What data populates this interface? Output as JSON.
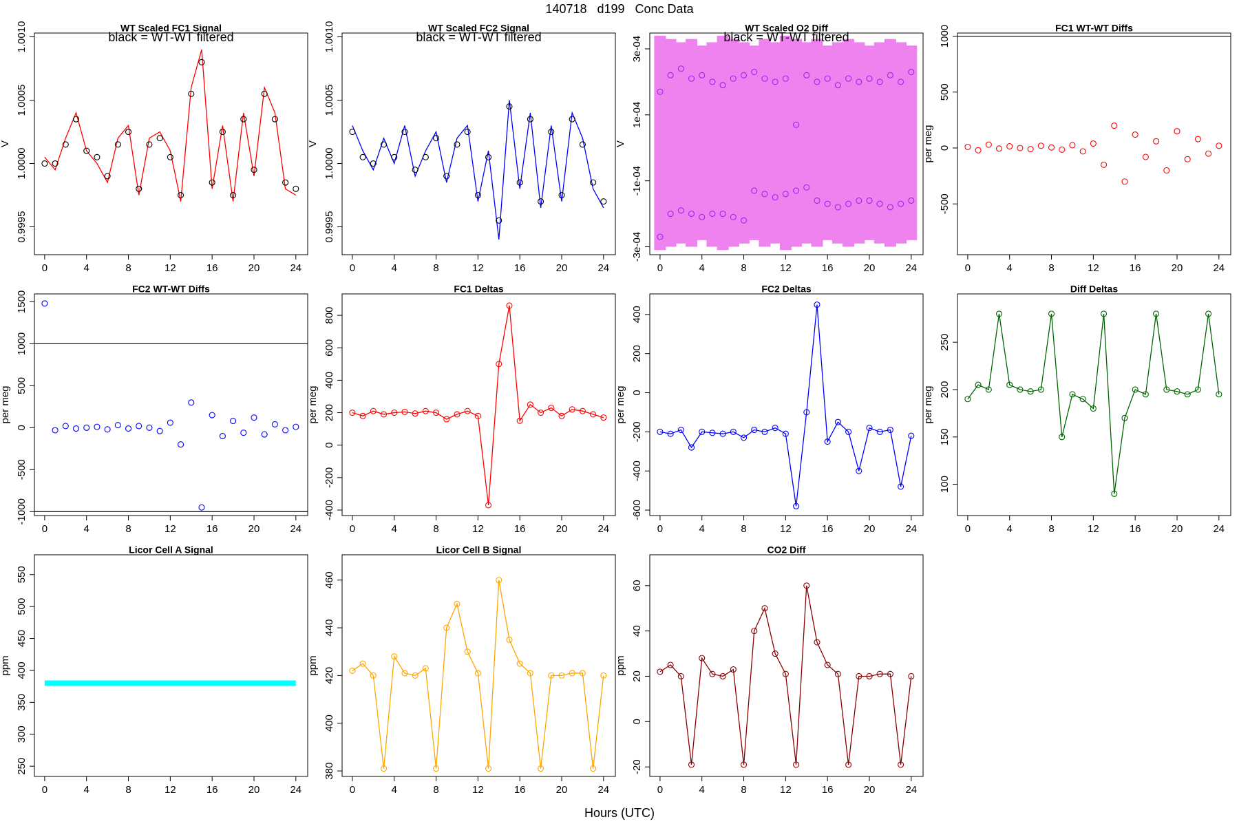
{
  "title": "140718   d199   Conc Data",
  "x_label": "Hours (UTC)",
  "chart_data": [
    {
      "type": "line",
      "title": "WT Scaled FC1 Signal",
      "subtitle": "black = WT-WT filtered",
      "y_label": "V",
      "x": [
        0,
        1,
        2,
        3,
        4,
        5,
        6,
        7,
        8,
        9,
        10,
        11,
        12,
        13,
        14,
        15,
        16,
        17,
        18,
        19,
        20,
        21,
        22,
        23,
        24
      ],
      "xlim": [
        -0.98,
        25.13
      ],
      "xticks": [
        0,
        4,
        8,
        12,
        16,
        20,
        24
      ],
      "ylim": [
        0.99928,
        1.00103
      ],
      "yticks": [
        {
          "value": 0.9995,
          "label": "0.9995"
        },
        {
          "value": 1.0,
          "label": "1.0000"
        },
        {
          "value": 1.0005,
          "label": "1.0005"
        },
        {
          "value": 1.001,
          "label": "1.0010"
        }
      ],
      "series": [
        {
          "color": "#ff0000",
          "style": "line",
          "values": [
            1.00005,
            0.99995,
            1.0002,
            1.0004,
            1.0001,
            1.0,
            0.99985,
            1.0002,
            1.0003,
            0.99975,
            1.0002,
            1.00025,
            1.0001,
            0.9997,
            1.0006,
            1.0009,
            0.9998,
            1.0003,
            0.9997,
            1.0004,
            0.9999,
            1.0006,
            1.0004,
            0.9998,
            0.99975
          ]
        },
        {
          "color": "#000000",
          "style": "points",
          "values": [
            1.0,
            1.0,
            1.00015,
            1.00035,
            1.0001,
            1.00005,
            0.9999,
            1.00015,
            1.00025,
            0.9998,
            1.00015,
            1.0002,
            1.00005,
            0.99975,
            1.00055,
            1.0008,
            0.99985,
            1.00025,
            0.99975,
            1.00035,
            0.99995,
            1.00055,
            1.00035,
            0.99985,
            0.9998
          ]
        }
      ]
    },
    {
      "type": "line",
      "title": "WT Scaled FC2 Signal",
      "subtitle": "black = WT-WT filtered",
      "y_label": "V",
      "x": [
        0,
        1,
        2,
        3,
        4,
        5,
        6,
        7,
        8,
        9,
        10,
        11,
        12,
        13,
        14,
        15,
        16,
        17,
        18,
        19,
        20,
        21,
        22,
        23,
        24
      ],
      "xlim": [
        -0.98,
        25.13
      ],
      "xticks": [
        0,
        4,
        8,
        12,
        16,
        20,
        24
      ],
      "ylim": [
        0.99928,
        1.00103
      ],
      "yticks": [
        {
          "value": 0.9995,
          "label": "0.9995"
        },
        {
          "value": 1.0,
          "label": "1.0000"
        },
        {
          "value": 1.0005,
          "label": "1.0005"
        },
        {
          "value": 1.001,
          "label": "1.0010"
        }
      ],
      "series": [
        {
          "color": "#0000ff",
          "style": "line",
          "values": [
            1.0003,
            1.0001,
            0.99995,
            1.0002,
            1.0,
            1.0003,
            0.9999,
            1.0001,
            1.00025,
            0.99985,
            1.0002,
            1.0003,
            0.9997,
            1.0001,
            0.9994,
            1.0005,
            0.9998,
            1.0004,
            0.99965,
            1.0003,
            0.9997,
            1.0004,
            1.0002,
            0.9998,
            0.99965
          ]
        },
        {
          "color": "#000000",
          "style": "points",
          "values": [
            1.00025,
            1.00005,
            1.0,
            1.00015,
            1.00005,
            1.00025,
            0.99995,
            1.00005,
            1.0002,
            0.9999,
            1.00015,
            1.00025,
            0.99975,
            1.00005,
            0.99955,
            1.00045,
            0.99985,
            1.00035,
            0.9997,
            1.00025,
            0.99975,
            1.00035,
            1.00015,
            0.99985,
            0.9997
          ]
        }
      ]
    },
    {
      "type": "line",
      "title": "WT Scaled O2 Diff",
      "subtitle": "black = WT-WT filtered",
      "y_label": "V",
      "x": [
        0,
        1,
        2,
        3,
        4,
        5,
        6,
        7,
        8,
        9,
        10,
        11,
        12,
        13,
        14,
        15,
        16,
        17,
        18,
        19,
        20,
        21,
        22,
        23,
        24
      ],
      "xlim": [
        -0.98,
        25.13
      ],
      "xticks": [
        0,
        4,
        8,
        12,
        16,
        20,
        24
      ],
      "ylim": [
        -0.000324,
        0.000348
      ],
      "yticks": [
        {
          "value": -0.0003,
          "label": "-3e-04"
        },
        {
          "value": -0.0001,
          "label": "-1e-04"
        },
        {
          "value": 0.0001,
          "label": "1e-04"
        },
        {
          "value": 0.0003,
          "label": "3e-04"
        }
      ],
      "series": [
        {
          "color": "#ee82ee",
          "style": "band",
          "values": [
            0.00034,
            0.00033,
            0.00032,
            0.00033,
            0.00031,
            0.00032,
            0.00034,
            0.00033,
            0.00032,
            0.00031,
            0.00033,
            0.00032,
            0.00034,
            0.00033,
            0.00032,
            0.00033,
            0.00031,
            0.00032,
            0.00033,
            0.00032,
            0.00031,
            0.00032,
            0.00033,
            0.00032,
            0.00031
          ],
          "values_low": [
            -0.00031,
            -0.0003,
            -0.00029,
            -0.0003,
            -0.00028,
            -0.0003,
            -0.00031,
            -0.0003,
            -0.00029,
            -0.00028,
            -0.0003,
            -0.00029,
            -0.00031,
            -0.0003,
            -0.00029,
            -0.0003,
            -0.00028,
            -0.00029,
            -0.0003,
            -0.00029,
            -0.00028,
            -0.00029,
            -0.0003,
            -0.00029,
            -0.00028
          ]
        },
        {
          "color": "#a020f0",
          "style": "points",
          "values": [
            0.00017,
            0.00022,
            0.00024,
            0.00021,
            0.00022,
            0.0002,
            0.00019,
            0.00021,
            0.00022,
            0.00023,
            0.00021,
            0.0002,
            0.00021,
            7e-05,
            0.00022,
            0.0002,
            0.00021,
            0.00019,
            0.00021,
            0.0002,
            0.00021,
            0.0002,
            0.00022,
            0.0002,
            0.00023
          ]
        },
        {
          "color": "#a020f0",
          "style": "points",
          "values": [
            -0.00027,
            -0.0002,
            -0.00019,
            -0.0002,
            -0.00021,
            -0.0002,
            -0.0002,
            -0.00021,
            -0.00022,
            -0.00013,
            -0.00014,
            -0.00015,
            -0.00014,
            -0.00013,
            -0.00012,
            -0.00016,
            -0.00017,
            -0.00018,
            -0.00017,
            -0.00016,
            -0.00016,
            -0.00017,
            -0.00018,
            -0.00017,
            -0.00016
          ]
        }
      ]
    },
    {
      "type": "scatter",
      "title": "FC1 WT-WT Diffs",
      "y_label": "per meg",
      "x": [
        0,
        1,
        2,
        3,
        4,
        5,
        6,
        7,
        8,
        9,
        10,
        11,
        12,
        13,
        14,
        15,
        16,
        17,
        18,
        19,
        20,
        21,
        22,
        23,
        24
      ],
      "xlim": [
        -0.98,
        25.13
      ],
      "xticks": [
        0,
        4,
        8,
        12,
        16,
        20,
        24
      ],
      "ylim": [
        -954,
        1028
      ],
      "yticks": [
        -500,
        0,
        500,
        1000
      ],
      "hlines": [
        1000
      ],
      "series": [
        {
          "color": "#ff0000",
          "style": "points",
          "values": [
            10,
            -20,
            30,
            -5,
            15,
            0,
            -10,
            20,
            5,
            -15,
            25,
            -30,
            40,
            -150,
            200,
            -300,
            120,
            -80,
            60,
            -200,
            150,
            -100,
            80,
            -50,
            20
          ]
        }
      ]
    },
    {
      "type": "scatter",
      "title": "FC2 WT-WT Diffs",
      "y_label": "per meg",
      "x": [
        0,
        1,
        2,
        3,
        4,
        5,
        6,
        7,
        8,
        9,
        10,
        11,
        12,
        13,
        14,
        15,
        16,
        17,
        18,
        19,
        20,
        21,
        22,
        23,
        24
      ],
      "xlim": [
        -0.98,
        25.13
      ],
      "xticks": [
        0,
        4,
        8,
        12,
        16,
        20,
        24
      ],
      "ylim": [
        -1047,
        1594
      ],
      "yticks": [
        -1000,
        -500,
        0,
        500,
        1000,
        1500
      ],
      "hlines": [
        1000,
        -1000
      ],
      "series": [
        {
          "color": "#0000ff",
          "style": "points",
          "values": [
            1480,
            -30,
            20,
            -10,
            0,
            10,
            -20,
            30,
            -10,
            20,
            0,
            -40,
            60,
            -200,
            300,
            -950,
            150,
            -100,
            80,
            -60,
            120,
            -80,
            40,
            -30,
            10
          ]
        }
      ]
    },
    {
      "type": "line",
      "title": "FC1 Deltas",
      "y_label": "per meg",
      "x": [
        0,
        1,
        2,
        3,
        4,
        5,
        6,
        7,
        8,
        9,
        10,
        11,
        12,
        13,
        14,
        15,
        16,
        17,
        18,
        19,
        20,
        21,
        22,
        23,
        24
      ],
      "xlim": [
        -0.98,
        25.13
      ],
      "xticks": [
        0,
        4,
        8,
        12,
        16,
        20,
        24
      ],
      "ylim": [
        -434,
        932
      ],
      "yticks": [
        -400,
        -200,
        0,
        200,
        400,
        600,
        800
      ],
      "series": [
        {
          "color": "#ff0000",
          "style": "line+points",
          "values": [
            200,
            180,
            210,
            190,
            200,
            205,
            195,
            210,
            200,
            160,
            190,
            210,
            180,
            -370,
            500,
            860,
            150,
            250,
            200,
            230,
            180,
            220,
            210,
            190,
            170
          ]
        }
      ]
    },
    {
      "type": "line",
      "title": "FC2 Deltas",
      "y_label": "per meg",
      "x": [
        0,
        1,
        2,
        3,
        4,
        5,
        6,
        7,
        8,
        9,
        10,
        11,
        12,
        13,
        14,
        15,
        16,
        17,
        18,
        19,
        20,
        21,
        22,
        23,
        24
      ],
      "xlim": [
        -0.98,
        25.13
      ],
      "xticks": [
        0,
        4,
        8,
        12,
        16,
        20,
        24
      ],
      "ylim": [
        -628,
        505
      ],
      "yticks": [
        -600,
        -400,
        -200,
        0,
        200,
        400
      ],
      "series": [
        {
          "color": "#0000ff",
          "style": "line+points",
          "values": [
            -200,
            -210,
            -190,
            -280,
            -200,
            -205,
            -210,
            -200,
            -230,
            -190,
            -200,
            -180,
            -210,
            -580,
            -100,
            450,
            -250,
            -150,
            -200,
            -400,
            -180,
            -200,
            -190,
            -480,
            -220
          ]
        }
      ]
    },
    {
      "type": "line",
      "title": "Diff Deltas",
      "y_label": "per meg",
      "x": [
        0,
        1,
        2,
        3,
        4,
        5,
        6,
        7,
        8,
        9,
        10,
        11,
        12,
        13,
        14,
        15,
        16,
        17,
        18,
        19,
        20,
        21,
        22,
        23,
        24
      ],
      "xlim": [
        -0.98,
        25.13
      ],
      "xticks": [
        0,
        4,
        8,
        12,
        16,
        20,
        24
      ],
      "ylim": [
        67,
        301
      ],
      "yticks": [
        100,
        150,
        200,
        250
      ],
      "series": [
        {
          "color": "#006400",
          "style": "line+points",
          "values": [
            190,
            205,
            200,
            280,
            205,
            200,
            198,
            200,
            280,
            150,
            195,
            190,
            180,
            280,
            90,
            170,
            200,
            195,
            280,
            200,
            198,
            195,
            200,
            280,
            195
          ]
        }
      ]
    },
    {
      "type": "line",
      "title": "Licor Cell A Signal",
      "y_label": "ppm",
      "x": [
        0,
        1,
        2,
        3,
        4,
        5,
        6,
        7,
        8,
        9,
        10,
        11,
        12,
        13,
        14,
        15,
        16,
        17,
        18,
        19,
        20,
        21,
        22,
        23,
        24
      ],
      "xlim": [
        -0.98,
        25.13
      ],
      "xticks": [
        0,
        4,
        8,
        12,
        16,
        20,
        24
      ],
      "ylim": [
        234,
        581
      ],
      "yticks": [
        250,
        300,
        350,
        400,
        450,
        500,
        550
      ],
      "series": [
        {
          "color": "#00ffff",
          "style": "thick",
          "values": [
            380,
            380,
            380,
            380,
            380,
            380,
            380,
            380,
            380,
            380,
            380,
            380,
            380,
            380,
            380,
            380,
            380,
            380,
            380,
            380,
            380,
            380,
            380,
            380,
            380
          ]
        }
      ]
    },
    {
      "type": "line",
      "title": "Licor Cell B Signal",
      "y_label": "ppm",
      "x": [
        0,
        1,
        2,
        3,
        4,
        5,
        6,
        7,
        8,
        9,
        10,
        11,
        12,
        13,
        14,
        15,
        16,
        17,
        18,
        19,
        20,
        21,
        22,
        23,
        24
      ],
      "xlim": [
        -0.98,
        25.13
      ],
      "xticks": [
        0,
        4,
        8,
        12,
        16,
        20,
        24
      ],
      "ylim": [
        377.7,
        470.6
      ],
      "yticks": [
        380,
        400,
        420,
        440,
        460
      ],
      "series": [
        {
          "color": "#ffa500",
          "style": "line+points",
          "values": [
            422,
            425,
            420,
            381,
            428,
            421,
            420,
            423,
            381,
            440,
            450,
            430,
            421,
            381,
            460,
            435,
            425,
            421,
            381,
            420,
            420,
            421,
            421,
            381,
            420
          ]
        }
      ]
    },
    {
      "type": "line",
      "title": "CO2 Diff",
      "y_label": "ppm",
      "x": [
        0,
        1,
        2,
        3,
        4,
        5,
        6,
        7,
        8,
        9,
        10,
        11,
        12,
        13,
        14,
        15,
        16,
        17,
        18,
        19,
        20,
        21,
        22,
        23,
        24
      ],
      "xlim": [
        -0.98,
        25.13
      ],
      "xticks": [
        0,
        4,
        8,
        12,
        16,
        20,
        24
      ],
      "ylim": [
        -24.2,
        73.6
      ],
      "yticks": [
        -20,
        0,
        20,
        40,
        60
      ],
      "series": [
        {
          "color": "#8b0000",
          "style": "line+points",
          "values": [
            22,
            25,
            20,
            -19,
            28,
            21,
            20,
            23,
            -19,
            40,
            50,
            30,
            21,
            -19,
            60,
            35,
            25,
            21,
            -19,
            20,
            20,
            21,
            21,
            -19,
            20
          ]
        }
      ]
    }
  ]
}
